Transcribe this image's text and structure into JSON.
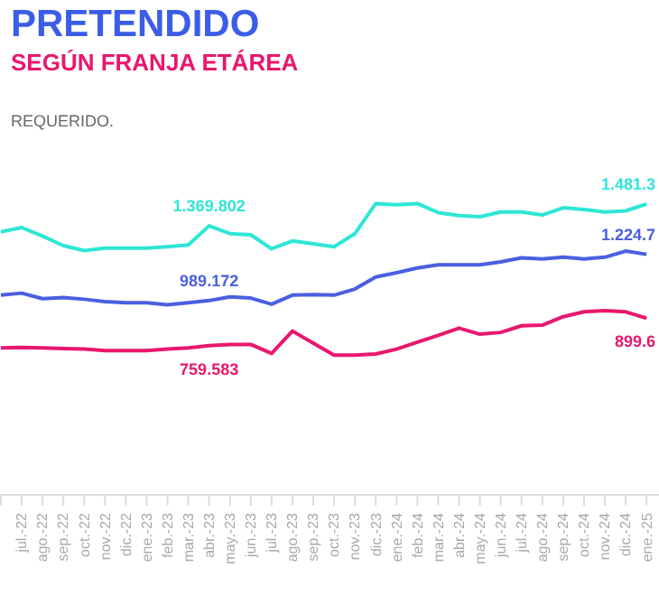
{
  "chart_data": {
    "type": "line",
    "title": "PRETENDIDO",
    "subtitle": "SEGÚN FRANJA ETÁREA",
    "annotations": [
      "REQUERIDO.",
      {
        "text": "1.481.3",
        "y": 1481300
      },
      {
        "text": "899.6",
        "y": 899600
      }
    ],
    "categories": [
      null,
      "jul.-22",
      "ago.-22",
      "sep.-22",
      "oct.-22",
      "nov.-22",
      "dic.-22",
      "ene.-23",
      "feb.-23",
      "mar.-23",
      "abr.-23",
      "may.-23",
      "jun.-23",
      "jul.-23",
      "ago.-23",
      "sep.-23",
      "oct.-23",
      "nov.-23",
      "dic.-23",
      "ene.-24",
      "feb.-24",
      "mar.-24",
      "abr.-24",
      "may.-24",
      "jun.-24",
      "jul.-24",
      "ago.-24",
      "sep.-24",
      "oct.-24",
      "nov.-24",
      "dic.-24",
      "ene.-25"
    ],
    "tick_labels": "x",
    "grid": false,
    "legend": false,
    "marker": "none",
    "series": [
      {
        "color": "#2ee6d6",
        "values": [
          1339000,
          1361000,
          1318000,
          1269000,
          1244000,
          1256000,
          1256000,
          1256000,
          1263000,
          1272000,
          1369802,
          1330000,
          1324000,
          1253000,
          1293000,
          1278000,
          1263000,
          1330000,
          1483000,
          1477000,
          1483000,
          1437000,
          1422000,
          1416000,
          1440000,
          1440000,
          1425000,
          1462000,
          1453000,
          1440000,
          1446000,
          1481300
        ],
        "value_labels": [
          null,
          null,
          null,
          null,
          null,
          null,
          null,
          null,
          null,
          null,
          "1.369.802",
          null,
          null,
          null,
          null,
          null,
          null,
          null,
          null,
          null,
          null,
          null,
          null,
          null,
          null,
          null,
          null,
          null,
          null,
          null,
          null,
          null
        ]
      },
      {
        "color": "#4a5fe0",
        "values": [
          1017000,
          1027000,
          999000,
          1005000,
          996000,
          984000,
          978000,
          978000,
          968000,
          978000,
          989172,
          1008000,
          1002000,
          971000,
          1017000,
          1020000,
          1017000,
          1048000,
          1109000,
          1131000,
          1155000,
          1171000,
          1171000,
          1171000,
          1186000,
          1207000,
          1201000,
          1210000,
          1201000,
          1210000,
          1241000,
          1224700
        ],
        "value_labels": [
          null,
          null,
          null,
          null,
          null,
          null,
          null,
          null,
          null,
          null,
          "989.172",
          null,
          null,
          null,
          null,
          null,
          null,
          null,
          null,
          null,
          null,
          null,
          null,
          null,
          null,
          null,
          null,
          null,
          null,
          null,
          null,
          "1.224.7"
        ]
      },
      {
        "color": "#e8176e",
        "values": [
          748000,
          751000,
          748000,
          745000,
          742000,
          735000,
          735000,
          735000,
          742000,
          748000,
          759583,
          766000,
          766000,
          720000,
          834000,
          772000,
          711000,
          711000,
          717000,
          742000,
          778000,
          812000,
          849000,
          818000,
          827000,
          861000,
          864000,
          907000,
          932000,
          938000,
          932000,
          899600
        ],
        "value_labels": [
          null,
          null,
          null,
          null,
          null,
          null,
          null,
          null,
          null,
          null,
          "759.583",
          null,
          null,
          null,
          null,
          null,
          null,
          null,
          null,
          null,
          null,
          null,
          null,
          null,
          null,
          null,
          null,
          null,
          null,
          null,
          null,
          null
        ]
      }
    ]
  }
}
